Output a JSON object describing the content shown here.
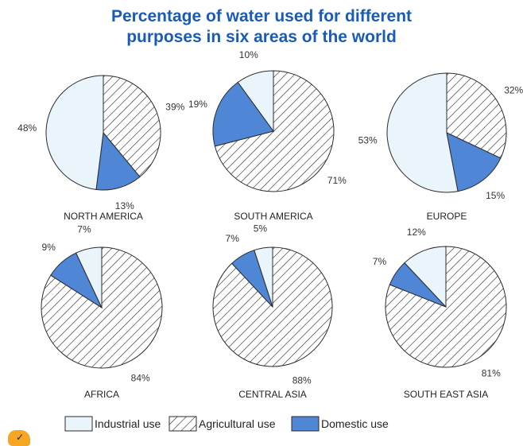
{
  "chart_data": {
    "type": "pie",
    "title": "Percentage of water used for different purposes in six areas of the world",
    "title_lines": [
      "Percentage of water used for different",
      "purposes in six areas of the world"
    ],
    "categories": [
      "Industrial use",
      "Agricultural use",
      "Domestic use"
    ],
    "colors": {
      "Industrial use": "#eaf4fb",
      "Agricultural use": "hatched",
      "Domestic use": "#4f86d6"
    },
    "title_color": "#1a5bb5",
    "charts": [
      {
        "name": "NORTH AMERICA",
        "values": {
          "Agricultural use": 39,
          "Domestic use": 13,
          "Industrial use": 48
        }
      },
      {
        "name": "SOUTH AMERICA",
        "values": {
          "Agricultural use": 71,
          "Domestic use": 19,
          "Industrial use": 10
        }
      },
      {
        "name": "EUROPE",
        "values": {
          "Agricultural use": 32,
          "Domestic use": 15,
          "Industrial use": 53
        }
      },
      {
        "name": "AFRICA",
        "values": {
          "Agricultural use": 84,
          "Domestic use": 9,
          "Industrial use": 7
        }
      },
      {
        "name": "CENTRAL ASIA",
        "values": {
          "Agricultural use": 88,
          "Domestic use": 7,
          "Industrial use": 5
        }
      },
      {
        "name": "SOUTH EAST ASIA",
        "values": {
          "Agricultural use": 81,
          "Domestic use": 7,
          "Industrial use": 12
        }
      }
    ],
    "slice_order": [
      "Agricultural use",
      "Domestic use",
      "Industrial use"
    ],
    "legend": {
      "placement": "bottom",
      "entries": [
        "Industrial use",
        "Agricultural use",
        "Domestic use"
      ]
    },
    "value_suffix": "%"
  },
  "badge": {
    "glyph": "✓"
  }
}
